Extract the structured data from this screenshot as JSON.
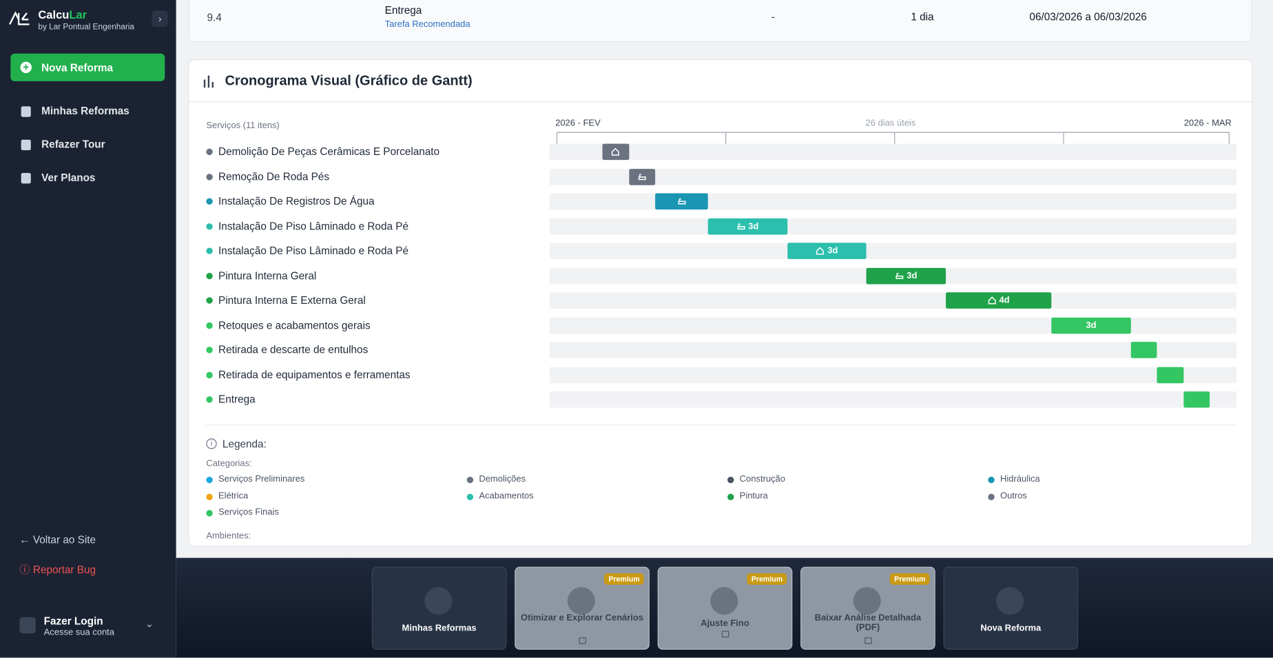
{
  "sidebar": {
    "brand_a": "Calcu",
    "brand_b": "Lar",
    "tagline": "by Lar Pontual Engenharia",
    "new_button": "Nova Reforma",
    "nav": [
      "Minhas Reformas",
      "Refazer Tour",
      "Ver Planos"
    ],
    "back": "Voltar ao Site",
    "bug": "Reportar Bug",
    "login_title": "Fazer Login",
    "login_sub": "Acesse sua conta"
  },
  "table_row": {
    "id": "9.4",
    "task": "Entrega",
    "tag": "Tarefa Recomendada",
    "dash": "-",
    "duration": "1 dia",
    "period": "06/03/2026 a 06/03/2026"
  },
  "gantt": {
    "title": "Cronograma Visual (Gráfico de Gantt)",
    "services_label": "Serviços (11 itens)",
    "start_label": "2026 - FEV",
    "span_label": "26 dias úteis",
    "end_label": "2026 - MAR",
    "xlim": [
      0,
      26
    ],
    "rows": [
      {
        "name": "Demolição De Peças Cerâmicas E Porcelanato",
        "color": "#6b7280",
        "start": 2,
        "duration": 1
      },
      {
        "name": "Remoção De Roda Pés",
        "color": "#6b7280",
        "start": 3,
        "duration": 1
      },
      {
        "name": "Instalação De Registros De Água",
        "color": "#1a96b3",
        "start": 4,
        "duration": 2
      },
      {
        "name": "Instalação De Piso Lâminado e Roda Pé",
        "color": "#2bbfad",
        "start": 6,
        "duration": 3,
        "duration_label": "3d"
      },
      {
        "name": "Instalação De Piso Lâminado e Roda Pé",
        "color": "#2bbfad",
        "start": 9,
        "duration": 3,
        "duration_label": "3d"
      },
      {
        "name": "Pintura Interna Geral",
        "color": "#1fa24a",
        "start": 12,
        "duration": 3,
        "duration_label": "3d"
      },
      {
        "name": "Pintura Interna E Externa Geral",
        "color": "#1fa24a",
        "start": 15,
        "duration": 4,
        "duration_label": "4d"
      },
      {
        "name": "Retoques e acabamentos gerais",
        "color": "#34c663",
        "start": 19,
        "duration": 3,
        "duration_label": "3d"
      },
      {
        "name": "Retirada e descarte de entulhos",
        "color": "#34c663",
        "start": 22,
        "duration": 1
      },
      {
        "name": "Retirada de equipamentos e ferramentas",
        "color": "#34c663",
        "start": 23,
        "duration": 1
      },
      {
        "name": "Entrega",
        "color": "#34c663",
        "start": 24,
        "duration": 1
      }
    ]
  },
  "legend": {
    "title": "Legenda:",
    "categories_label": "Categorias:",
    "environments_label": "Ambientes:",
    "categories": [
      {
        "name": "Serviços Preliminares",
        "color": "#1fa8e0"
      },
      {
        "name": "Demolições",
        "color": "#6b7280"
      },
      {
        "name": "Construção",
        "color": "#4b5563"
      },
      {
        "name": "Hidráulica",
        "color": "#1a96b3"
      },
      {
        "name": "Elétrica",
        "color": "#f0a313"
      },
      {
        "name": "Acabamentos",
        "color": "#2bbfad"
      },
      {
        "name": "Pintura",
        "color": "#1fa24a"
      },
      {
        "name": "Outros",
        "color": "#6b7280"
      },
      {
        "name": "Serviços Finais",
        "color": "#34c663"
      }
    ]
  },
  "actions": [
    {
      "label": "Minhas Reformas"
    },
    {
      "label": "Otimizar e Explorar Cenários",
      "badge": "Premium"
    },
    {
      "label": "Ajuste Fino",
      "badge": "Premium"
    },
    {
      "label": "Baixar Análise Detalhada (PDF)",
      "badge": "Premium"
    },
    {
      "label": "Nova Reforma"
    }
  ]
}
